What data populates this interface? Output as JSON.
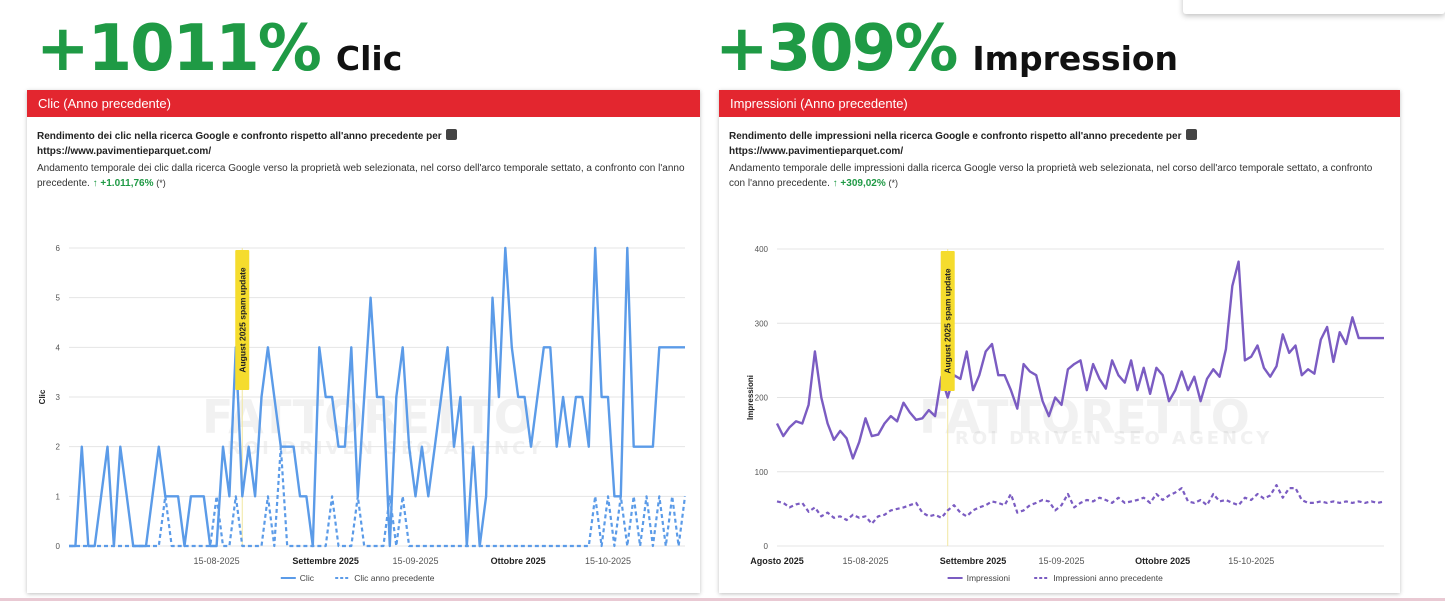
{
  "headline_left": {
    "pct": "+1011%",
    "word": "Clic"
  },
  "headline_right": {
    "pct": "+309%",
    "word": "Impression"
  },
  "panel_left": {
    "header": "Clic (Anno precedente)",
    "title": "Rendimento dei clic nella ricerca Google e confronto rispetto all'anno precedente per",
    "url": "https://www.pavimentieparquet.com/",
    "desc": "Andamento temporale dei clic dalla ricerca Google verso la proprietà web selezionata, nel corso dell'arco temporale settato, a confronto con l'anno precedente.",
    "delta": "↑ +1.011,76%",
    "note": "(*)"
  },
  "panel_right": {
    "header": "Impressioni (Anno precedente)",
    "title": "Rendimento delle impressioni nella ricerca Google e confronto rispetto all'anno precedente per",
    "url": "https://www.pavimentieparquet.com/",
    "desc": "Andamento temporale delle impressioni dalla ricerca Google verso la proprietà web selezionata, nel corso dell'arco temporale settato, a confronto con l'anno precedente.",
    "delta": "↑ +309,02%",
    "note": "(*)"
  },
  "watermark": {
    "brand": "FATTORETTO",
    "tagline": "ROI DRIVEN SEO AGENCY"
  },
  "colors": {
    "green": "#1f9a45",
    "red": "#e3262f",
    "blue": "#5b9be8",
    "purple": "#7b5cc2",
    "annotation": "#f5dc2d"
  },
  "chart_data": [
    {
      "type": "line",
      "title": "Clic (Anno precedente)",
      "xlabel": "",
      "ylabel": "Clic",
      "ylim": [
        0,
        6
      ],
      "yticks": [
        "0",
        "1",
        "2",
        "3",
        "4",
        "5",
        "6"
      ],
      "day_count": 97,
      "xticks": [
        {
          "day": 23,
          "label": "15-08-2025",
          "bold": false
        },
        {
          "day": 40,
          "label": "Settembre 2025",
          "bold": true
        },
        {
          "day": 54,
          "label": "15-09-2025",
          "bold": false
        },
        {
          "day": 70,
          "label": "Ottobre 2025",
          "bold": true
        },
        {
          "day": 84,
          "label": "15-10-2025",
          "bold": false
        }
      ],
      "annotation": {
        "day": 27,
        "label": "August 2025 spam update"
      },
      "series": [
        {
          "name": "Clic",
          "style": "solid",
          "values": [
            0,
            0,
            2,
            0,
            0,
            1,
            2,
            0,
            2,
            1,
            0,
            0,
            0,
            1,
            2,
            1,
            1,
            1,
            0,
            1,
            1,
            1,
            0,
            0,
            2,
            1,
            4,
            1,
            2,
            1,
            3,
            4,
            3,
            2,
            2,
            2,
            1,
            1,
            0,
            4,
            3,
            3,
            2,
            2,
            4,
            1,
            3,
            5,
            3,
            3,
            0,
            3,
            4,
            2,
            1,
            2,
            1,
            2,
            3,
            4,
            2,
            3,
            0,
            2,
            0,
            1,
            5,
            3,
            6,
            4,
            3,
            3,
            2,
            3,
            4,
            4,
            2,
            3,
            2,
            3,
            3,
            2,
            6,
            3,
            3,
            1,
            1,
            6,
            2,
            2,
            2,
            2,
            4,
            4,
            4,
            4,
            4
          ]
        },
        {
          "name": "Clic anno precedente",
          "style": "dashed",
          "values": [
            0,
            0,
            0,
            0,
            0,
            0,
            0,
            0,
            0,
            0,
            0,
            0,
            0,
            0,
            0,
            1,
            0,
            0,
            0,
            0,
            0,
            0,
            0,
            1,
            0,
            0,
            1,
            0,
            0,
            0,
            0,
            1,
            0,
            2,
            0,
            0,
            0,
            0,
            0,
            0,
            0,
            1,
            0,
            0,
            0,
            1,
            0,
            0,
            0,
            0,
            1,
            0,
            1,
            0,
            0,
            0,
            0,
            0,
            0,
            0,
            0,
            0,
            0,
            0,
            0,
            0,
            0,
            0,
            0,
            0,
            0,
            0,
            0,
            0,
            0,
            0,
            0,
            0,
            0,
            0,
            0,
            0,
            1,
            0,
            1,
            0,
            1,
            0,
            1,
            0,
            1,
            0,
            1,
            0,
            1,
            0,
            1
          ]
        }
      ]
    },
    {
      "type": "line",
      "title": "Impressioni (Anno precedente)",
      "xlabel": "",
      "ylabel": "Impressioni",
      "ylim": [
        0,
        400
      ],
      "yticks": [
        "0",
        "100",
        "200",
        "300",
        "400"
      ],
      "day_count": 97,
      "xticks": [
        {
          "day": 0,
          "label": "Agosto 2025",
          "bold": true
        },
        {
          "day": 14,
          "label": "15-08-2025",
          "bold": false
        },
        {
          "day": 31,
          "label": "Settembre 2025",
          "bold": true
        },
        {
          "day": 45,
          "label": "15-09-2025",
          "bold": false
        },
        {
          "day": 61,
          "label": "Ottobre 2025",
          "bold": true
        },
        {
          "day": 75,
          "label": "15-10-2025",
          "bold": false
        }
      ],
      "annotation": {
        "day": 27,
        "label": "August 2025 spam update"
      },
      "series": [
        {
          "name": "Impressioni",
          "style": "solid",
          "values": [
            165,
            148,
            160,
            168,
            165,
            190,
            262,
            200,
            165,
            143,
            155,
            145,
            118,
            140,
            172,
            148,
            150,
            165,
            175,
            168,
            193,
            180,
            170,
            172,
            183,
            175,
            228,
            200,
            230,
            225,
            262,
            210,
            230,
            262,
            272,
            230,
            230,
            210,
            185,
            245,
            235,
            230,
            195,
            175,
            200,
            190,
            238,
            245,
            250,
            210,
            245,
            225,
            212,
            250,
            230,
            220,
            250,
            210,
            240,
            205,
            240,
            230,
            195,
            210,
            235,
            210,
            228,
            195,
            225,
            238,
            228,
            265,
            350,
            383,
            250,
            255,
            270,
            240,
            228,
            242,
            285,
            260,
            270,
            230,
            238,
            232,
            278,
            295,
            248,
            288,
            272,
            308,
            280,
            280,
            280,
            280,
            280
          ]
        },
        {
          "name": "Impressioni anno precedente",
          "style": "dashed",
          "values": [
            60,
            58,
            52,
            56,
            58,
            46,
            52,
            40,
            45,
            38,
            40,
            35,
            42,
            38,
            40,
            30,
            40,
            42,
            48,
            50,
            52,
            55,
            58,
            45,
            40,
            42,
            38,
            48,
            55,
            45,
            40,
            48,
            52,
            55,
            60,
            58,
            55,
            70,
            45,
            48,
            55,
            58,
            62,
            60,
            48,
            55,
            70,
            52,
            58,
            62,
            60,
            65,
            62,
            58,
            65,
            58,
            60,
            62,
            65,
            58,
            70,
            62,
            68,
            72,
            78,
            60,
            58,
            62,
            55,
            70,
            60,
            62,
            58,
            55,
            65,
            62,
            70,
            64,
            68,
            82,
            65,
            78,
            78,
            62,
            58,
            58,
            60,
            58,
            60,
            58,
            60,
            58,
            60,
            58,
            60,
            58,
            60
          ]
        }
      ]
    }
  ]
}
